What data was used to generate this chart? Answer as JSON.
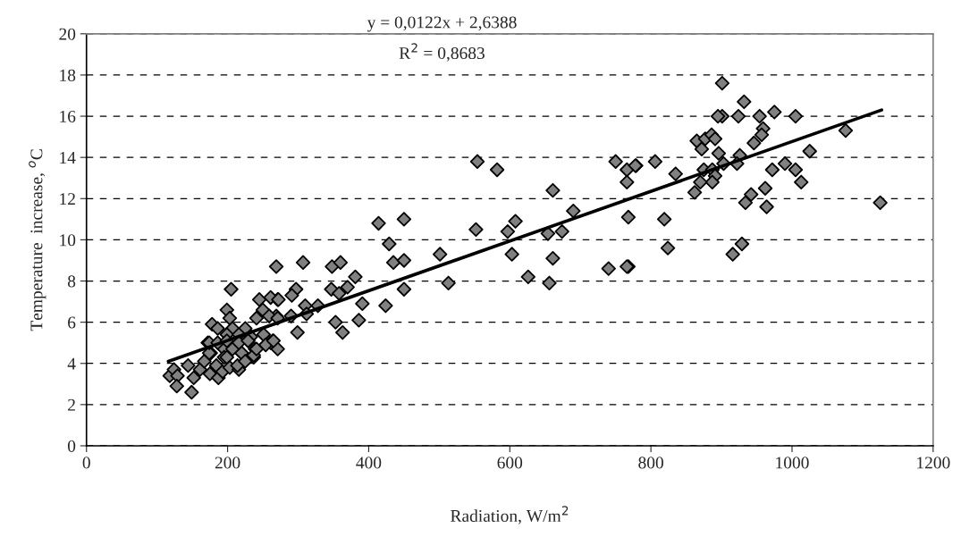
{
  "chart_data": {
    "type": "scatter",
    "xlabel": "Radiation, W/m$^{2}$",
    "ylabel": "Temperature  increase, $^{o}$C",
    "annotations": [
      "y = 0,0122x + 2,6388",
      "R$^{2}$ = 0,8683"
    ],
    "xlim": [
      0,
      1200
    ],
    "xticks": [
      0,
      200,
      400,
      600,
      800,
      1000,
      1200
    ],
    "ylim": [
      0,
      20
    ],
    "yticks": [
      0,
      2,
      4,
      6,
      8,
      10,
      12,
      14,
      16,
      18,
      20
    ],
    "grid": "y",
    "legend": false,
    "series": [
      {
        "marker": "diamond",
        "color": "#808080",
        "x": [
          901,
          932,
          975,
          1005,
          954,
          924,
          901,
          895,
          1076,
          959,
          957,
          946,
          865,
          877,
          886,
          891,
          872,
          896,
          926,
          1025,
          779,
          806,
          835,
          903,
          922,
          875,
          887,
          891,
          887,
          870,
          862,
          972,
          990,
          1005,
          1013,
          962,
          942,
          934,
          964,
          1125,
          819,
          824,
          929,
          916,
          768,
          768,
          582,
          554,
          750,
          766,
          778,
          766,
          661,
          690,
          608,
          597,
          654,
          674,
          552,
          414,
          450,
          429,
          435,
          450,
          501,
          603,
          661,
          740,
          766,
          626,
          656,
          513,
          450,
          424,
          269,
          307,
          348,
          360,
          381,
          370,
          347,
          358,
          391,
          386,
          353,
          363,
          328,
          310,
          312,
          297,
          291,
          271,
          261,
          290,
          269,
          299,
          271,
          264,
          205,
          245,
          272,
          199,
          250,
          259,
          271,
          178,
          186,
          203,
          207,
          225,
          241,
          199,
          216,
          233,
          172,
          176,
          195,
          229,
          251,
          261,
          195,
          220,
          239,
          237,
          118,
          124,
          129,
          128,
          144,
          149,
          152,
          161,
          167,
          175,
          174,
          187,
          184,
          193,
          199,
          203,
          216,
          214,
          220,
          225,
          237,
          241,
          254,
          265,
          174,
          186,
          199,
          207,
          216,
          229
        ],
        "values": [
          17.6,
          16.7,
          16.2,
          16.0,
          16.0,
          16.0,
          16.0,
          16.0,
          15.3,
          15.4,
          15.1,
          14.7,
          14.8,
          14.9,
          15.1,
          14.9,
          14.4,
          14.2,
          14.1,
          14.3,
          13.6,
          13.8,
          13.2,
          13.7,
          13.7,
          13.4,
          13.4,
          13.1,
          12.8,
          12.8,
          12.3,
          13.4,
          13.7,
          13.4,
          12.8,
          12.5,
          12.2,
          11.8,
          11.6,
          11.8,
          11.0,
          9.6,
          9.8,
          9.3,
          11.1,
          8.7,
          13.4,
          13.8,
          13.8,
          13.4,
          13.6,
          12.8,
          12.4,
          11.4,
          10.9,
          10.4,
          10.3,
          10.4,
          10.5,
          10.8,
          11.0,
          9.8,
          8.9,
          9.0,
          9.3,
          9.3,
          9.1,
          8.6,
          8.7,
          8.2,
          7.9,
          7.9,
          7.6,
          6.8,
          8.7,
          8.9,
          8.7,
          8.9,
          8.2,
          7.7,
          7.6,
          7.4,
          6.9,
          6.1,
          6.0,
          5.5,
          6.8,
          6.8,
          6.4,
          7.6,
          7.3,
          7.1,
          7.2,
          6.3,
          6.3,
          5.5,
          4.7,
          5.1,
          7.6,
          7.1,
          7.1,
          6.6,
          6.6,
          6.3,
          6.2,
          5.9,
          5.7,
          6.2,
          5.7,
          5.7,
          6.2,
          5.4,
          5.4,
          5.3,
          5.0,
          4.5,
          4.7,
          5.1,
          5.4,
          5.0,
          4.3,
          4.5,
          4.7,
          4.3,
          3.4,
          3.7,
          3.4,
          2.9,
          3.9,
          2.6,
          3.3,
          3.7,
          4.1,
          3.5,
          4.5,
          3.3,
          3.9,
          3.6,
          4.3,
          3.8,
          3.7,
          3.9,
          4.5,
          4.1,
          4.4,
          4.7,
          4.9,
          5.1,
          5.0,
          5.0,
          5.1,
          4.7,
          5.0,
          5.1
        ]
      },
      {
        "type": "line",
        "marker": "none",
        "line_style": "solid",
        "color": "#000000",
        "x": [
          116,
          1127
        ],
        "values": [
          4.1,
          16.3
        ]
      }
    ]
  }
}
